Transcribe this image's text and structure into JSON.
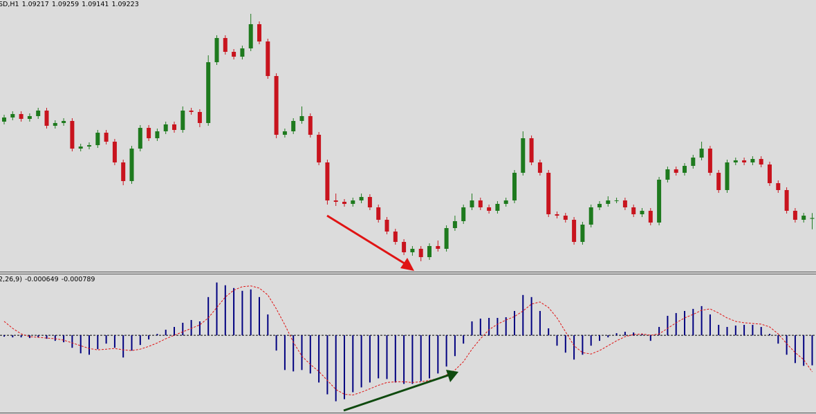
{
  "chart_data": [
    {
      "type": "candlestick",
      "title": "SD,H1",
      "open": [
        1.0992,
        1.0995,
        1.09975,
        1.0994,
        1.0996,
        1.1,
        1.0989,
        1.0991,
        1.09925,
        1.09725,
        1.0974,
        1.0975,
        1.0984,
        1.09775,
        1.09625,
        1.0949,
        1.09725,
        1.09875,
        1.098,
        1.0985,
        1.099,
        1.0986,
        1.1,
        1.0999,
        1.0991,
        1.1035,
        1.10525,
        1.10425,
        1.1039,
        1.1045,
        1.10625,
        1.105,
        1.1025,
        1.09825,
        1.0985,
        1.09925,
        1.0996,
        1.09825,
        1.09625,
        1.0935,
        1.0934,
        1.09325,
        1.0935,
        1.09375,
        1.093,
        1.0921,
        1.09125,
        1.0905,
        1.08975,
        1.09,
        1.0894,
        1.0902,
        1.09,
        1.0915,
        1.092,
        1.093,
        1.0935,
        1.093,
        1.09275,
        1.09325,
        1.0935,
        1.0955,
        1.098,
        1.09625,
        1.0955,
        1.0925,
        1.0924,
        1.0921,
        1.0905,
        1.09175,
        1.093,
        1.09325,
        1.0935,
        1.0935,
        1.093,
        1.0925,
        1.09275,
        1.0919,
        1.095,
        1.09575,
        1.0955,
        1.096,
        1.0966,
        1.09725,
        1.0955,
        1.09425,
        1.09625,
        1.0964,
        1.09625,
        1.0965,
        1.0961,
        1.09475,
        1.09425,
        1.09275,
        1.0921,
        1.09217
      ],
      "high": [
        1.0997,
        1.09995,
        1.09995,
        1.0998,
        1.1002,
        1.1002,
        1.0993,
        1.09945,
        1.09945,
        1.0976,
        1.0977,
        1.0986,
        1.0986,
        1.09795,
        1.09645,
        1.09745,
        1.09895,
        1.09895,
        1.0987,
        1.0992,
        1.0992,
        1.1003,
        1.1002,
        1.1001,
        1.104,
        1.10545,
        1.10545,
        1.10445,
        1.1047,
        1.107,
        1.10645,
        1.1052,
        1.1027,
        1.0987,
        1.09945,
        1.1003,
        1.0998,
        1.09845,
        1.09645,
        1.094,
        1.0936,
        1.0937,
        1.094,
        1.09395,
        1.0932,
        1.0923,
        1.09145,
        1.0907,
        1.0902,
        1.0902,
        1.0904,
        1.0906,
        1.0917,
        1.0924,
        1.0932,
        1.094,
        1.0937,
        1.0932,
        1.09345,
        1.0937,
        1.0957,
        1.0985,
        1.0982,
        1.09645,
        1.0957,
        1.0927,
        1.0926,
        1.0923,
        1.09195,
        1.0932,
        1.09345,
        1.0938,
        1.0937,
        1.0937,
        1.0932,
        1.09295,
        1.09295,
        1.0952,
        1.09595,
        1.09595,
        1.0962,
        1.0968,
        1.09775,
        1.09745,
        1.0957,
        1.09645,
        1.0966,
        1.0966,
        1.0967,
        1.0967,
        1.0963,
        1.09495,
        1.09445,
        1.09295,
        1.0926,
        1.09259
      ],
      "low": [
        1.099,
        1.0993,
        1.0992,
        1.0992,
        1.0994,
        1.0987,
        1.0987,
        1.0989,
        1.09705,
        1.09705,
        1.0972,
        1.0973,
        1.09755,
        1.09605,
        1.0946,
        1.0947,
        1.09705,
        1.0978,
        1.0978,
        1.0983,
        1.0984,
        1.0984,
        1.0997,
        1.0988,
        1.0989,
        1.1033,
        1.10405,
        1.1037,
        1.1037,
        1.1043,
        1.1048,
        1.1023,
        1.098,
        1.09805,
        1.0983,
        1.09905,
        1.09805,
        1.09605,
        1.0932,
        1.0931,
        1.09305,
        1.09305,
        1.0933,
        1.0928,
        1.0919,
        1.09105,
        1.0903,
        1.08955,
        1.0895,
        1.0891,
        1.0892,
        1.0898,
        1.0898,
        1.0913,
        1.0918,
        1.0928,
        1.0928,
        1.09255,
        1.09255,
        1.09305,
        1.0933,
        1.0953,
        1.09605,
        1.0953,
        1.0923,
        1.0922,
        1.0919,
        1.0903,
        1.0903,
        1.09155,
        1.0928,
        1.09305,
        1.0933,
        1.0928,
        1.0923,
        1.0923,
        1.0917,
        1.0917,
        1.0948,
        1.0953,
        1.0953,
        1.0958,
        1.0964,
        1.0953,
        1.09405,
        1.09405,
        1.09605,
        1.09605,
        1.09605,
        1.0959,
        1.09455,
        1.09405,
        1.09255,
        1.0919,
        1.0919,
        1.09141
      ],
      "close": [
        1.0995,
        1.09975,
        1.0994,
        1.0996,
        1.1,
        1.0989,
        1.0991,
        1.09925,
        1.09725,
        1.0974,
        1.0975,
        1.0984,
        1.09775,
        1.09625,
        1.0949,
        1.09725,
        1.09875,
        1.098,
        1.0985,
        1.099,
        1.0986,
        1.1,
        1.0999,
        1.0991,
        1.1035,
        1.10525,
        1.10425,
        1.1039,
        1.1045,
        1.10625,
        1.105,
        1.1025,
        1.09825,
        1.0985,
        1.09925,
        1.0996,
        1.09825,
        1.09625,
        1.0935,
        1.0934,
        1.09325,
        1.0935,
        1.09375,
        1.093,
        1.0921,
        1.09125,
        1.0905,
        1.08975,
        1.09,
        1.0894,
        1.0902,
        1.09,
        1.0915,
        1.092,
        1.093,
        1.0935,
        1.093,
        1.09275,
        1.09325,
        1.0935,
        1.0955,
        1.098,
        1.09625,
        1.0955,
        1.0925,
        1.0924,
        1.0921,
        1.0905,
        1.09175,
        1.093,
        1.09325,
        1.0935,
        1.0935,
        1.093,
        1.0925,
        1.09275,
        1.0919,
        1.095,
        1.09575,
        1.0955,
        1.096,
        1.0966,
        1.09725,
        1.0955,
        1.09425,
        1.09625,
        1.0964,
        1.09625,
        1.0965,
        1.0961,
        1.09475,
        1.09425,
        1.09275,
        1.0921,
        1.0924,
        1.09223
      ],
      "ylim": [
        1.08835,
        1.108
      ],
      "up_color": "#1e7a1e",
      "down_color": "#c8141e"
    },
    {
      "type": "macd",
      "title": "2,26,9)",
      "histogram": [
        -3e-05,
        -4.5e-05,
        -4.5e-05,
        -6e-05,
        -4.5e-05,
        -7.5e-05,
        -0.00012,
        -0.00015,
        -0.00027,
        -0.00039,
        -0.00042,
        -0.0003,
        -0.00018,
        -0.00027,
        -0.00048,
        -0.00033,
        -0.00021,
        -9e-05,
        3e-05,
        0.00012,
        0.00018,
        0.00027,
        0.00033,
        0.0003,
        0.000825,
        0.00114,
        0.00108,
        0.00102,
        0.00096,
        0.00099,
        0.000825,
        0.00045,
        -0.00033,
        -0.00075,
        -0.00078,
        -0.00075,
        -0.000825,
        -0.00102,
        -0.001275,
        -0.001425,
        -0.00138,
        -0.00123,
        -0.001125,
        -0.00102,
        -0.00093,
        -0.000945,
        -0.00102,
        -0.00105,
        -0.00105,
        -0.00099,
        -0.00093,
        -0.000825,
        -0.000675,
        -0.00045,
        -0.00018,
        0.0003,
        0.00036,
        0.000375,
        0.000375,
        0.00039,
        0.000525,
        0.00087,
        0.000825,
        0.000525,
        0.00015,
        -0.000225,
        -0.000375,
        -0.000525,
        -0.00042,
        -0.000225,
        -0.00012,
        -4.5e-05,
        4.5e-05,
        7.5e-05,
        6e-05,
        3e-05,
        -0.00012,
        0.00018,
        0.00042,
        0.00048,
        0.000525,
        0.00057,
        0.00063,
        0.00045,
        0.000225,
        0.00018,
        0.00021,
        0.000225,
        0.000225,
        0.00018,
        3e-05,
        -0.00018,
        -0.00042,
        -0.0006,
        -0.00066,
        -0.000649
      ],
      "signal": [
        0.0003,
        0.00015,
        3e-05,
        -3e-05,
        -4.5e-05,
        -6e-05,
        -7.5e-05,
        -0.000105,
        -0.000165,
        -0.000225,
        -0.000285,
        -0.000315,
        -0.0003,
        -0.000285,
        -0.000315,
        -0.00033,
        -0.0003,
        -0.00024,
        -0.000165,
        -7.5e-05,
        0,
        7.5e-05,
        0.00015,
        0.000225,
        0.000375,
        0.0006,
        0.000825,
        0.000975,
        0.00105,
        0.001065,
        0.00102,
        0.00087,
        0.00057,
        0.000225,
        -0.00015,
        -0.00045,
        -0.00063,
        -0.00078,
        -0.000975,
        -0.00117,
        -0.001275,
        -0.00129,
        -0.00123,
        -0.001155,
        -0.00108,
        -0.00102,
        -0.001005,
        -0.001005,
        -0.00102,
        -0.001005,
        -0.000975,
        -0.00093,
        -0.000855,
        -0.00075,
        -0.00057,
        -0.0003,
        -7.5e-05,
        0.00012,
        0.00024,
        0.00033,
        0.000405,
        0.000525,
        0.000675,
        0.00072,
        0.0006,
        0.000375,
        7.5e-05,
        -0.000225,
        -0.000375,
        -0.000405,
        -0.00033,
        -0.000225,
        -0.00012,
        -3e-05,
        1.5e-05,
        3e-05,
        0,
        3e-05,
        0.00015,
        0.00027,
        0.000375,
        0.00045,
        0.00054,
        0.00057,
        0.00048,
        0.000375,
        0.0003,
        0.00027,
        0.000255,
        0.00024,
        0.00018,
        3e-05,
        -0.00018,
        -0.000375,
        -0.000525,
        -0.000789
      ],
      "ylim": [
        -0.0017,
        0.0013
      ],
      "histogram_color": "#000080",
      "signal_color": "#e01010"
    }
  ]
}
